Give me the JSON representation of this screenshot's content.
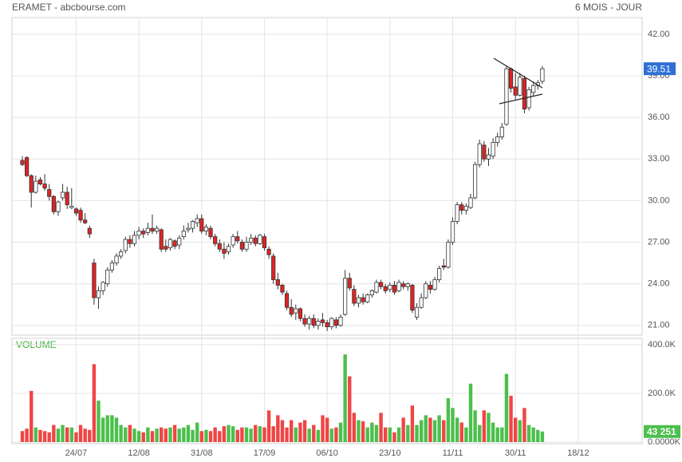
{
  "chart_data": {
    "type": "candlestick",
    "title": "ERAMET - abcbourse.com",
    "subtitle": "6 MOIS - JOUR",
    "categories": [
      null,
      null,
      null,
      null,
      null,
      null,
      null,
      null,
      null,
      null,
      null,
      null,
      "24/07",
      null,
      null,
      null,
      null,
      null,
      null,
      null,
      null,
      null,
      null,
      null,
      null,
      null,
      "12/08",
      null,
      null,
      null,
      null,
      null,
      null,
      null,
      null,
      null,
      null,
      null,
      null,
      null,
      "31/08",
      null,
      null,
      null,
      null,
      null,
      null,
      null,
      null,
      null,
      null,
      null,
      null,
      null,
      "17/09",
      null,
      null,
      null,
      null,
      null,
      null,
      null,
      null,
      null,
      null,
      null,
      null,
      null,
      "06/10",
      null,
      null,
      null,
      null,
      null,
      null,
      null,
      null,
      null,
      null,
      null,
      null,
      null,
      "23/10",
      null,
      null,
      null,
      null,
      null,
      null,
      null,
      null,
      null,
      null,
      null,
      null,
      null,
      "11/11",
      null,
      null,
      null,
      null,
      null,
      null,
      null,
      null,
      null,
      null,
      null,
      null,
      null,
      "30/11",
      null,
      null,
      null,
      null,
      null,
      null,
      null,
      null,
      null,
      null,
      null,
      null,
      null,
      "18/12"
    ],
    "open": [
      32.9,
      33.1,
      31.8,
      30.6,
      31.5,
      31.2,
      30.8,
      30.3,
      29.2,
      30.2,
      30.6,
      29.5,
      29.4,
      29.3,
      28.6,
      28.0,
      25.5,
      23.0,
      23.5,
      24.0,
      25.0,
      25.5,
      26.0,
      26.4,
      27.2,
      26.9,
      27.5,
      27.8,
      27.7,
      28.0,
      27.8,
      27.9,
      26.7,
      26.6,
      27.1,
      26.8,
      27.4,
      27.9,
      28.0,
      28.4,
      28.7,
      27.8,
      28.0,
      27.4,
      26.9,
      26.5,
      26.3,
      26.8,
      27.4,
      27.0,
      26.5,
      27.0,
      27.3,
      26.9,
      27.4,
      26.5,
      26.0,
      24.3,
      23.9,
      23.3,
      22.3,
      21.9,
      22.2,
      21.5,
      21.1,
      21.5,
      21.0,
      21.4,
      21.2,
      20.9,
      21.4,
      21.0,
      21.8,
      24.4,
      23.6,
      22.6,
      23.0,
      22.7,
      23.2,
      23.4,
      24.1,
      23.8,
      23.6,
      23.9,
      23.5,
      24.0,
      23.8,
      23.9,
      21.6,
      22.3,
      23.0,
      23.9,
      23.6,
      24.3,
      25.3,
      25.2,
      27.0,
      28.5,
      29.7,
      29.3,
      29.5,
      30.2,
      32.6,
      34.0,
      33.0,
      33.2,
      34.2,
      34.6,
      35.5,
      39.5,
      38.2,
      37.6,
      38.8,
      36.7,
      37.8,
      38.3,
      38.6,
      null,
      null,
      null,
      null,
      null,
      null,
      null,
      null
    ],
    "high": [
      33.2,
      33.2,
      31.9,
      31.8,
      31.7,
      31.9,
      31.2,
      30.4,
      30.0,
      31.2,
      31.0,
      30.9,
      29.5,
      29.5,
      29.1,
      28.2,
      25.8,
      23.8,
      24.2,
      25.2,
      25.7,
      26.2,
      26.5,
      27.4,
      27.5,
      27.8,
      28.1,
      28.0,
      28.4,
      29.0,
      28.2,
      28.0,
      27.2,
      27.3,
      27.2,
      27.5,
      28.2,
      28.4,
      28.6,
      29.0,
      29.0,
      28.3,
      28.2,
      27.6,
      27.2,
      27.0,
      26.9,
      27.6,
      27.8,
      27.2,
      27.4,
      27.6,
      27.5,
      27.6,
      27.6,
      26.7,
      26.2,
      24.8,
      24.0,
      23.5,
      22.9,
      22.5,
      22.3,
      21.8,
      21.7,
      21.8,
      21.5,
      21.9,
      21.4,
      21.6,
      21.6,
      21.8,
      25.0,
      24.8,
      23.9,
      23.2,
      23.3,
      23.3,
      23.6,
      24.3,
      24.3,
      24.0,
      24.1,
      24.2,
      24.3,
      24.2,
      24.1,
      24.0,
      22.6,
      23.3,
      24.2,
      24.2,
      24.5,
      25.3,
      25.8,
      27.2,
      28.8,
      29.9,
      29.9,
      29.8,
      30.5,
      32.8,
      34.4,
      34.3,
      33.8,
      34.5,
      34.9,
      35.6,
      39.7,
      39.6,
      39.2,
      39.2,
      39.0,
      38.2,
      38.6,
      38.7,
      39.7,
      null,
      null,
      null,
      null,
      null,
      null,
      null,
      null
    ],
    "low": [
      32.5,
      31.7,
      29.5,
      30.5,
      31.1,
      30.7,
      30.0,
      29.0,
      28.9,
      30.0,
      29.4,
      29.4,
      28.9,
      28.4,
      28.3,
      27.3,
      22.5,
      22.2,
      23.2,
      23.8,
      24.8,
      25.3,
      25.8,
      26.2,
      26.6,
      26.7,
      27.2,
      27.3,
      27.5,
      27.6,
      27.6,
      26.3,
      26.3,
      26.4,
      26.5,
      26.5,
      27.2,
      27.7,
      27.7,
      28.1,
      27.6,
      27.5,
      27.2,
      26.7,
      26.3,
      25.8,
      26.1,
      26.6,
      26.9,
      26.3,
      26.3,
      26.8,
      26.7,
      26.8,
      26.4,
      25.8,
      24.0,
      23.6,
      23.2,
      22.1,
      21.6,
      21.4,
      21.3,
      20.9,
      20.7,
      20.8,
      20.7,
      20.9,
      20.6,
      20.7,
      20.8,
      20.9,
      21.7,
      23.5,
      22.4,
      22.3,
      22.5,
      22.6,
      23.0,
      23.3,
      23.6,
      23.3,
      23.4,
      23.2,
      23.4,
      23.6,
      23.5,
      21.9,
      21.4,
      22.2,
      22.9,
      23.3,
      23.5,
      24.1,
      25.0,
      25.1,
      26.8,
      28.3,
      29.0,
      29.0,
      29.4,
      30.1,
      32.4,
      32.8,
      32.5,
      33.0,
      33.9,
      34.4,
      35.4,
      37.8,
      37.3,
      37.5,
      36.3,
      36.5,
      37.5,
      38.0,
      38.4,
      null,
      null,
      null,
      null,
      null,
      null,
      null,
      null
    ],
    "close": [
      32.6,
      31.8,
      30.6,
      31.4,
      31.2,
      30.9,
      30.3,
      29.2,
      29.9,
      30.6,
      29.7,
      29.6,
      29.1,
      28.6,
      28.4,
      27.6,
      23.0,
      23.5,
      24.1,
      25.0,
      25.5,
      26.0,
      26.3,
      27.2,
      26.9,
      27.5,
      27.8,
      27.6,
      28.0,
      27.8,
      28.0,
      26.5,
      26.5,
      27.2,
      26.7,
      27.3,
      27.8,
      28.0,
      28.5,
      28.7,
      27.8,
      28.1,
      27.4,
      26.9,
      26.5,
      26.2,
      26.7,
      27.4,
      27.1,
      26.5,
      27.0,
      27.3,
      26.9,
      27.5,
      26.6,
      26.1,
      24.3,
      23.9,
      23.4,
      22.3,
      21.8,
      22.2,
      21.5,
      21.1,
      21.5,
      21.0,
      21.3,
      21.2,
      20.9,
      21.5,
      21.0,
      21.6,
      24.4,
      23.7,
      22.6,
      23.0,
      22.7,
      23.2,
      23.5,
      24.1,
      23.8,
      23.5,
      23.9,
      23.4,
      24.1,
      23.8,
      24.0,
      22.1,
      22.3,
      23.0,
      24.0,
      23.6,
      24.3,
      25.1,
      25.2,
      27.0,
      28.5,
      29.7,
      29.3,
      29.6,
      30.2,
      32.6,
      34.1,
      33.0,
      33.3,
      34.2,
      34.6,
      35.3,
      39.5,
      38.1,
      37.6,
      38.9,
      36.6,
      38.0,
      38.3,
      38.5,
      39.51,
      null,
      null,
      null,
      null,
      null,
      null,
      null,
      null
    ],
    "up_color": "#ffffff",
    "down_color": "#e32222",
    "outline_color": "#333333",
    "ylim": [
      20.3,
      43.2
    ],
    "yticks": [
      {
        "value": 21,
        "label": "21.00"
      },
      {
        "value": 24,
        "label": "24.00"
      },
      {
        "value": 27,
        "label": "27.00"
      },
      {
        "value": 30,
        "label": "30.00"
      },
      {
        "value": 33,
        "label": "33.00"
      },
      {
        "value": 36,
        "label": "36.00"
      },
      {
        "value": 39,
        "label": "39.00"
      },
      {
        "value": 42,
        "label": "42.00"
      }
    ],
    "grid": true,
    "price_tag_color": "#2f6fd6",
    "volume": {
      "name": "VOLUME",
      "values": [
        45,
        55,
        210,
        60,
        50,
        45,
        40,
        70,
        55,
        70,
        60,
        60,
        40,
        70,
        55,
        50,
        320,
        170,
        100,
        110,
        110,
        100,
        70,
        60,
        70,
        55,
        45,
        40,
        60,
        45,
        55,
        60,
        55,
        60,
        70,
        55,
        60,
        70,
        50,
        80,
        45,
        50,
        45,
        60,
        45,
        65,
        70,
        65,
        50,
        60,
        60,
        55,
        70,
        65,
        60,
        130,
        65,
        110,
        90,
        60,
        90,
        60,
        80,
        90,
        55,
        70,
        50,
        110,
        100,
        55,
        60,
        80,
        360,
        270,
        120,
        90,
        85,
        60,
        80,
        70,
        120,
        60,
        60,
        40,
        60,
        100,
        70,
        150,
        70,
        90,
        110,
        100,
        90,
        110,
        90,
        180,
        140,
        100,
        80,
        60,
        240,
        130,
        70,
        130,
        120,
        80,
        60,
        60,
        280,
        190,
        100,
        90,
        140,
        70,
        60,
        50,
        43.251,
        null,
        null,
        null,
        null,
        null,
        null,
        null,
        null
      ],
      "value_labels": [
        null,
        null,
        null,
        null,
        null,
        null,
        null,
        null,
        null,
        null,
        null,
        null,
        null,
        null,
        null,
        null,
        null,
        null,
        null,
        null,
        null,
        null,
        null,
        null,
        null,
        null,
        null,
        null,
        null,
        null,
        null,
        null,
        null,
        null,
        null,
        null,
        null,
        null,
        null,
        null,
        null,
        null,
        null,
        null,
        null,
        null,
        null,
        null,
        null,
        null,
        null,
        null,
        null,
        null,
        null,
        null,
        null,
        null,
        null,
        null,
        null,
        null,
        null,
        null,
        null,
        null,
        null,
        null,
        null,
        null,
        null,
        null,
        null,
        null,
        null,
        null,
        null,
        null,
        null,
        null,
        null,
        null,
        null,
        null,
        null,
        null,
        null,
        null,
        null,
        null,
        null,
        null,
        null,
        null,
        null,
        null,
        null,
        null,
        null,
        null,
        null,
        null,
        null,
        null,
        null,
        null,
        null,
        null,
        null,
        null,
        null,
        null,
        null,
        null,
        null,
        null,
        "43 251",
        null,
        null,
        null,
        null,
        null,
        null,
        null,
        null
      ],
      "up_color": "#4cbf4c",
      "down_color": "#f04545",
      "ylim": [
        0,
        426
      ],
      "yticks": [
        {
          "value": 0,
          "label": "0.0000K"
        },
        {
          "value": 200,
          "label": "200.0K"
        },
        {
          "value": 400,
          "label": "400.0K"
        }
      ]
    }
  }
}
